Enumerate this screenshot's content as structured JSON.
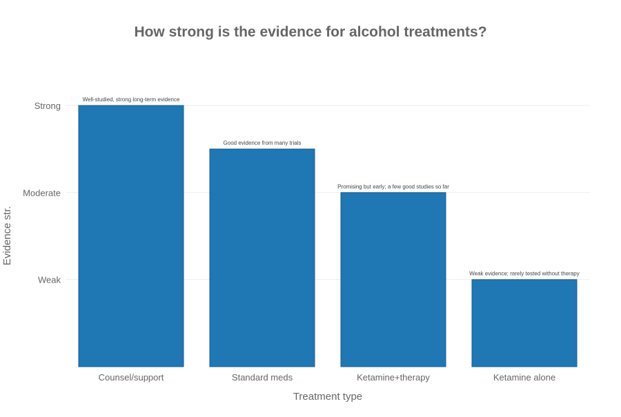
{
  "chart_data": {
    "type": "bar",
    "title": "How strong is the evidence for alcohol treatments?",
    "xlabel": "Treatment type",
    "ylabel": "Evidence str.",
    "categories": [
      "Counsel/support",
      "Standard meds",
      "Ketamine+therapy",
      "Ketamine alone"
    ],
    "values": [
      3,
      2.5,
      2,
      1
    ],
    "annotations": [
      "Well-studied, strong long-term evidence",
      "Good evidence from many trials",
      "Promising but early; a few good studies so far",
      "Weak evidence; rarely tested without therapy"
    ],
    "yticks": [
      {
        "value": 1,
        "label": "Weak"
      },
      {
        "value": 2,
        "label": "Moderate"
      },
      {
        "value": 3,
        "label": "Strong"
      }
    ],
    "ylim": [
      0,
      3
    ],
    "grid": "horizontal",
    "colors": {
      "bar": "#1f77b4",
      "bar_edge": "#1a5f8f",
      "text": "#555555",
      "grid": "#eeeeee"
    }
  }
}
